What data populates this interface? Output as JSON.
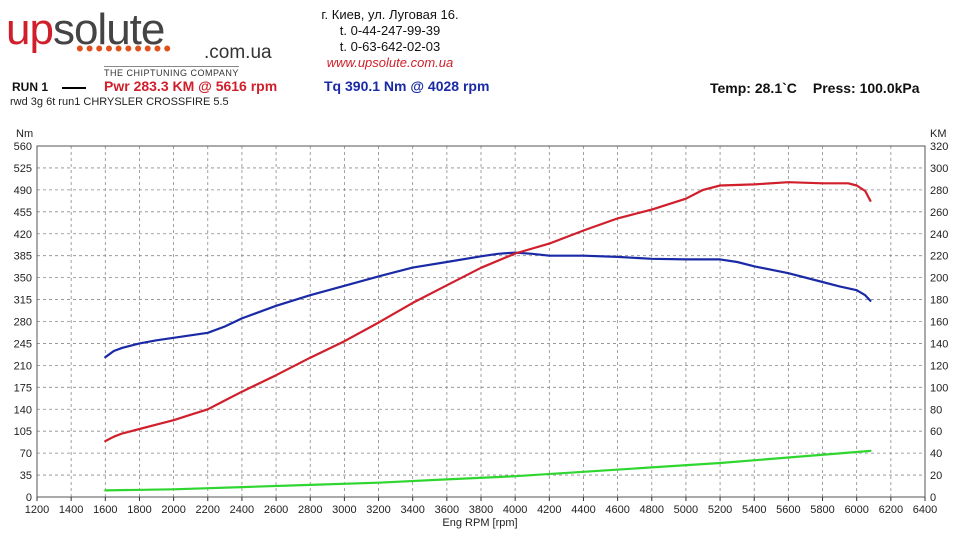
{
  "header": {
    "logo": {
      "brand_part1": "up",
      "brand_part2": "solute",
      "dots": "••••••••••",
      "domain": ".com.ua",
      "tagline": "THE CHIPTUNING COMPANY"
    },
    "contact": {
      "address": "г. Киев, ул. Луговая 16.",
      "phone1": "t. 0-44-247-99-39",
      "phone2": "t. 0-63-642-02-03",
      "website": "www.upsolute.com.ua"
    }
  },
  "run": {
    "label": "RUN 1",
    "power_summary": "Pwr  283.3 KM @ 5616 rpm",
    "torque_summary": "Tq 390.1 Nm @ 4028 rpm",
    "temp": "Temp: 28.1`C",
    "pressure": "Press: 100.0kPa",
    "description": "rwd 3g 6t run1 CHRYSLER CROSSFIRE 5.5"
  },
  "colors": {
    "power": "#d01f2b",
    "torque": "#1a2aa6",
    "green": "#2fd62f",
    "grid": "#8a8a8a"
  },
  "chart_data": {
    "type": "line",
    "xlabel": "Eng RPM [rpm]",
    "ylabel_left": "Nm",
    "ylabel_right": "KM",
    "xlim": [
      1200,
      6400
    ],
    "ylim_left": [
      0,
      560
    ],
    "ylim_right": [
      0,
      320
    ],
    "grid": true,
    "x_ticks": [
      "1200",
      "1400",
      "1600",
      "1800",
      "2000",
      "2200",
      "2400",
      "2600",
      "2800",
      "3000",
      "3200",
      "3400",
      "3600",
      "3800",
      "4000",
      "4200",
      "4400",
      "4600",
      "4800",
      "5000",
      "5200",
      "5400",
      "5600",
      "5800",
      "6000",
      "6200",
      "6400"
    ],
    "y_left_ticks": [
      "0",
      "35",
      "70",
      "105",
      "140",
      "175",
      "210",
      "245",
      "280",
      "315",
      "350",
      "385",
      "420",
      "455",
      "490",
      "525",
      "560"
    ],
    "y_right_ticks": [
      "0",
      "20",
      "40",
      "60",
      "80",
      "100",
      "120",
      "140",
      "160",
      "180",
      "200",
      "220",
      "240",
      "260",
      "280",
      "300",
      "320"
    ],
    "series": [
      {
        "axis": "left",
        "x": [
          1600,
          1650,
          1700,
          1800,
          1900,
          2000,
          2100,
          2200,
          2300,
          2400,
          2600,
          2800,
          3000,
          3200,
          3400,
          3600,
          3800,
          3900,
          4000,
          4100,
          4200,
          4400,
          4600,
          4800,
          5000,
          5200,
          5300,
          5400,
          5600,
          5800,
          5900,
          6000,
          6050,
          6080
        ],
        "y": [
          223,
          233,
          238,
          245,
          250,
          254,
          258,
          262,
          272,
          285,
          305,
          322,
          337,
          352,
          366,
          375,
          384,
          388,
          390,
          388,
          385,
          385,
          383,
          380,
          379,
          379,
          375,
          368,
          357,
          343,
          336,
          330,
          322,
          313
        ]
      },
      {
        "axis": "right",
        "x": [
          1600,
          1650,
          1700,
          1800,
          1900,
          2000,
          2100,
          2200,
          2300,
          2400,
          2600,
          2800,
          3000,
          3200,
          3400,
          3600,
          3800,
          4000,
          4200,
          4400,
          4600,
          4800,
          5000,
          5100,
          5200,
          5400,
          5600,
          5800,
          5950,
          6000,
          6050,
          6080
        ],
        "y": [
          51,
          55,
          58,
          62,
          66,
          70,
          75,
          80,
          88,
          96,
          111,
          127,
          142,
          159,
          177,
          193,
          209,
          222,
          231,
          243,
          254,
          262,
          272,
          280,
          284,
          285,
          287,
          286,
          286,
          284,
          279,
          270
        ]
      },
      {
        "axis": "right",
        "x": [
          1600,
          2000,
          2400,
          2800,
          3200,
          3600,
          4000,
          4400,
          4800,
          5200,
          5600,
          6000,
          6080
        ],
        "y": [
          6,
          7,
          9,
          11,
          13,
          16,
          19,
          23,
          27,
          31,
          36,
          41,
          42
        ]
      }
    ]
  }
}
